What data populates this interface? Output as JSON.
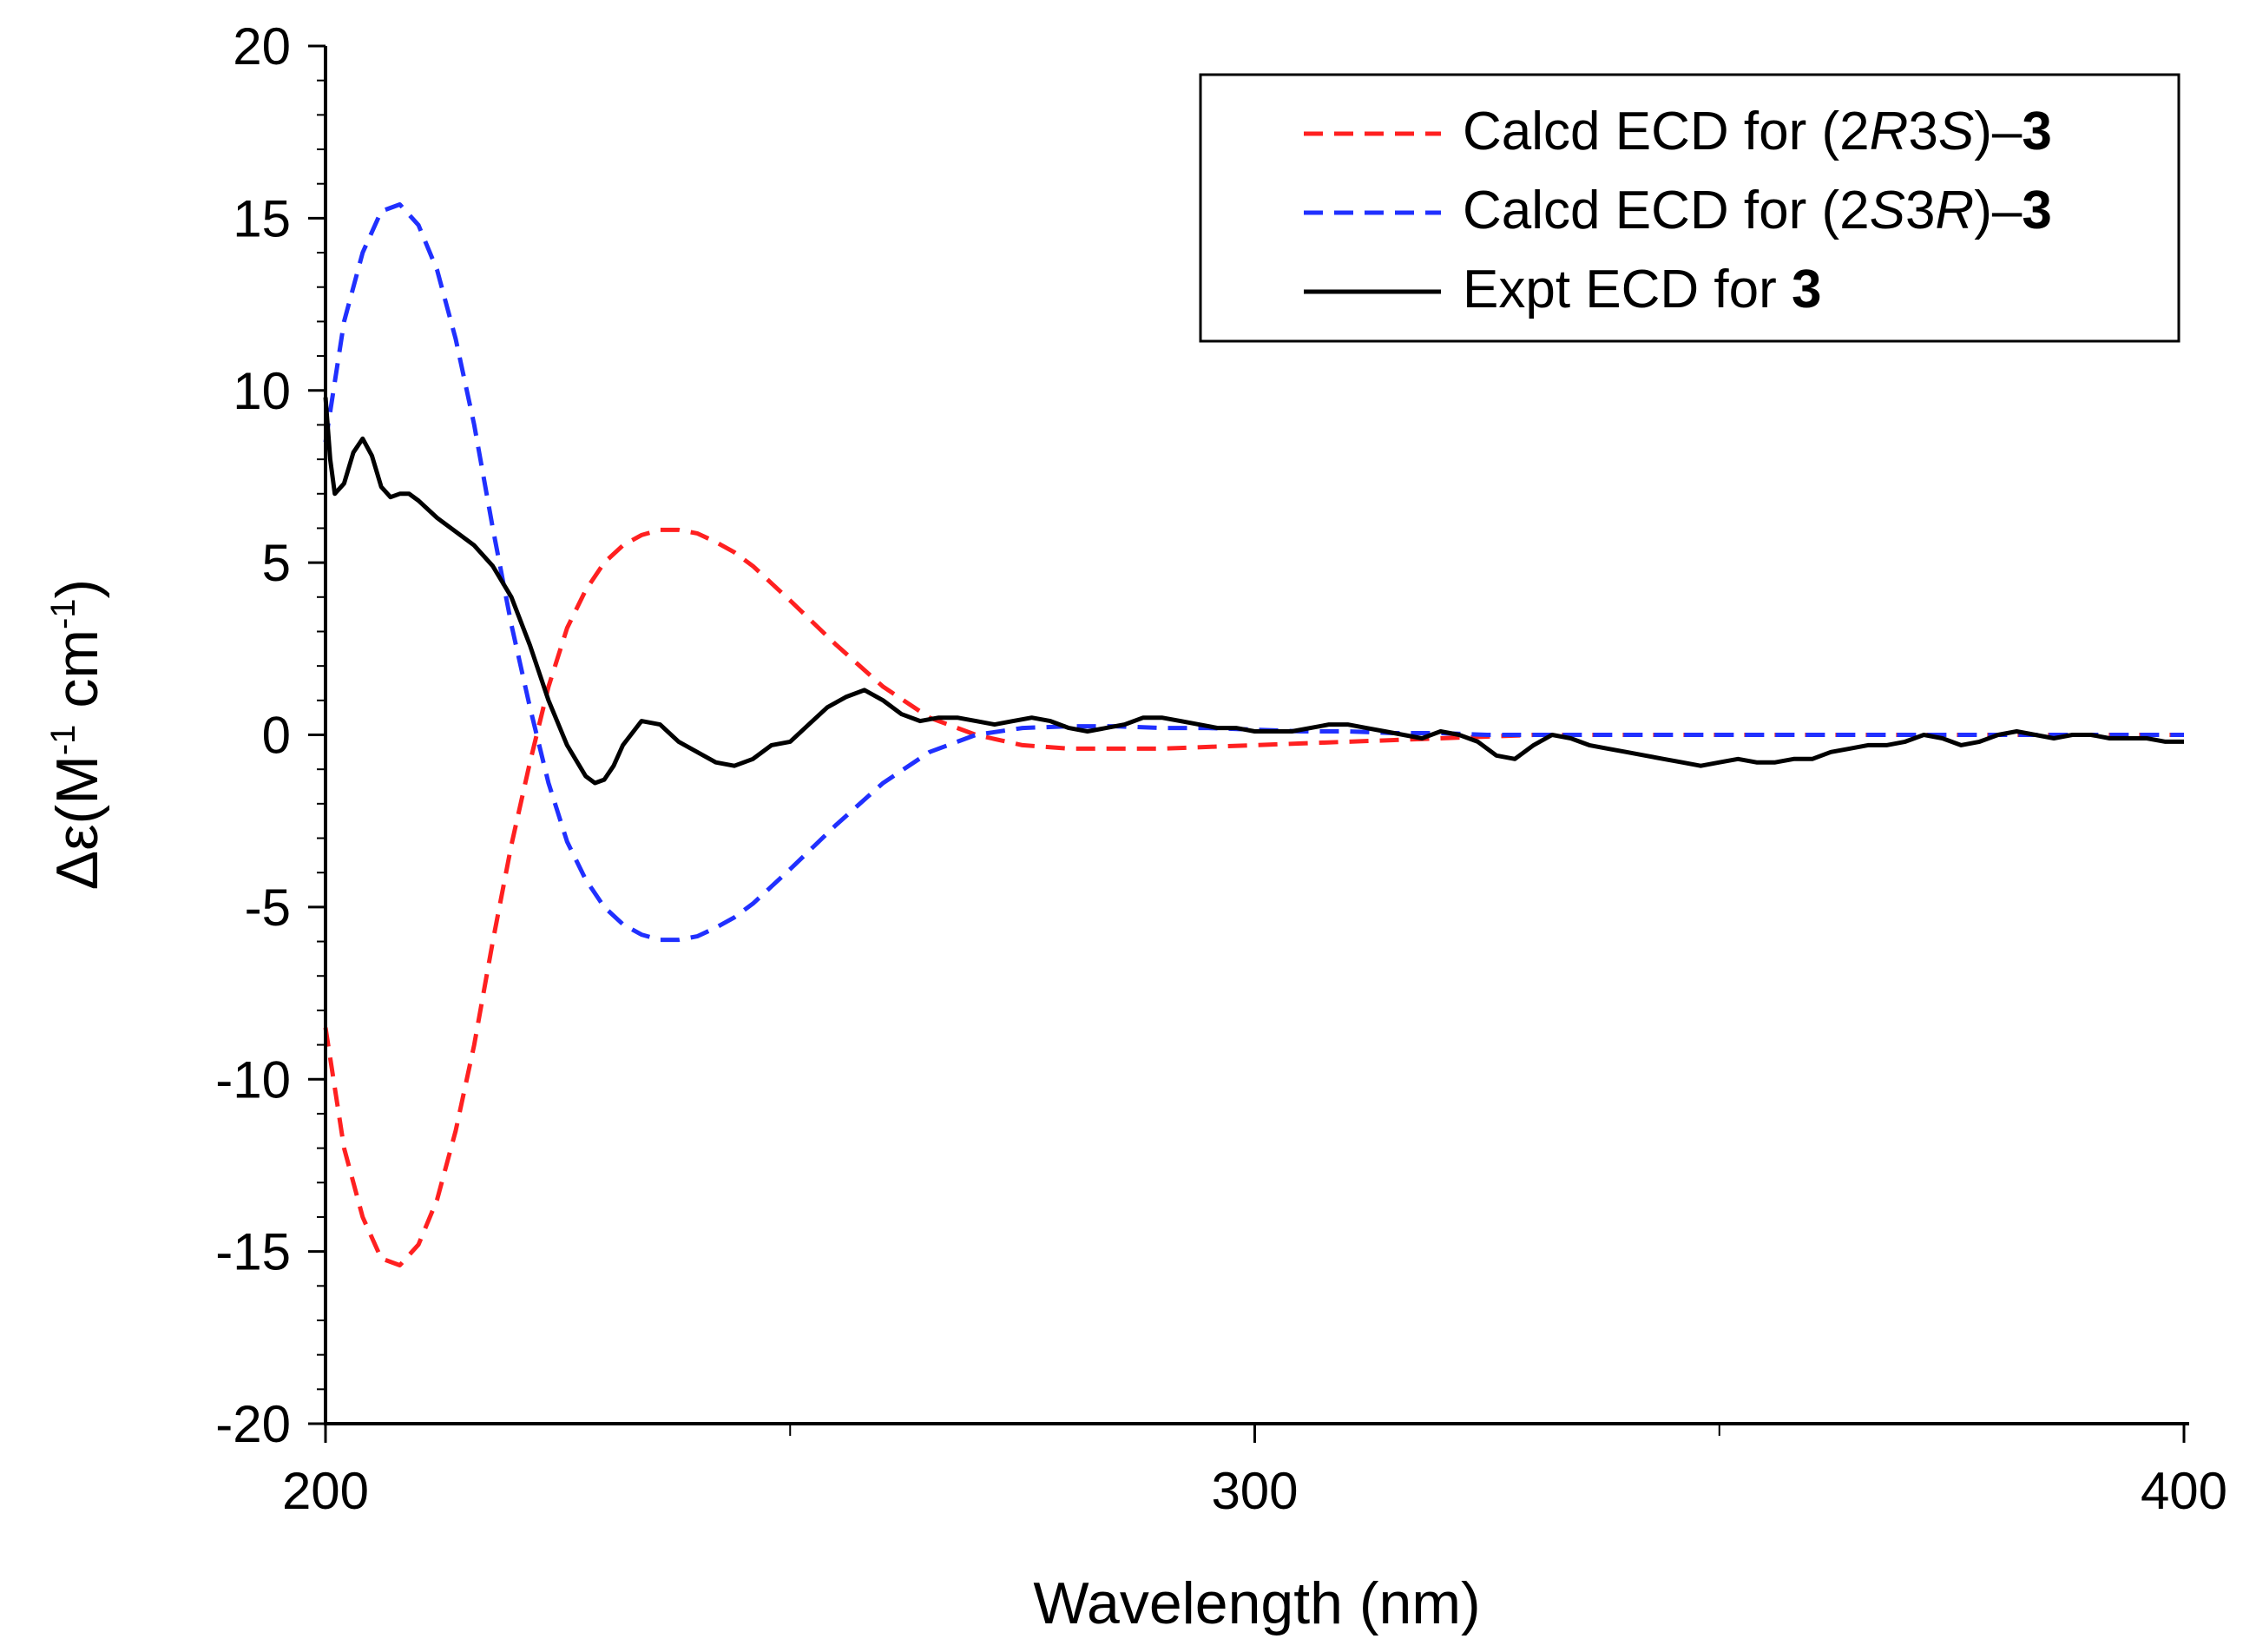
{
  "chart_data": {
    "type": "line",
    "xlabel": "Wavelength (nm)",
    "ylabel": {
      "symbol": "Δε",
      "open": "(M",
      "exp1": "-1",
      "mid": " cm",
      "exp2": "-1",
      "close": ")"
    },
    "xlim": [
      200,
      400
    ],
    "ylim": [
      -20,
      20
    ],
    "x_ticks": [
      200,
      300,
      400
    ],
    "x_tick_labels": [
      "200",
      "300",
      "400"
    ],
    "x_minor_ticks": [
      250,
      350
    ],
    "y_ticks": [
      20,
      15,
      10,
      5,
      0,
      -5,
      -10,
      -15,
      -20
    ],
    "y_tick_labels": [
      "20",
      "15",
      "10",
      "5",
      "0",
      "-5",
      "-10",
      "-15",
      "-20"
    ],
    "y_minor_step": 1,
    "legend_position": "top-right",
    "series": [
      {
        "name": "Calcd ECD for (2R3S)–3",
        "label_parts": [
          {
            "text": "Calcd ECD for (2",
            "style": "normal"
          },
          {
            "text": "R",
            "style": "italic"
          },
          {
            "text": "3",
            "style": "normal"
          },
          {
            "text": "S",
            "style": "italic"
          },
          {
            "text": ")–",
            "style": "normal"
          },
          {
            "text": "3",
            "style": "bold"
          }
        ],
        "color": "#ff2020",
        "dash": "dashed",
        "x": [
          200,
          202,
          204,
          206,
          208,
          210,
          212,
          214,
          216,
          218,
          220,
          222,
          224,
          226,
          228,
          230,
          232,
          234,
          236,
          238,
          240,
          242,
          244,
          246,
          248,
          250,
          255,
          260,
          265,
          270,
          275,
          280,
          285,
          290,
          295,
          300,
          305,
          310,
          315,
          320,
          325,
          330,
          340,
          350,
          360,
          370,
          380,
          390,
          400
        ],
        "values": [
          -8.5,
          -12.0,
          -14.0,
          -15.2,
          -15.4,
          -14.8,
          -13.5,
          -11.5,
          -9.0,
          -6.0,
          -3.2,
          -0.8,
          1.4,
          3.1,
          4.2,
          5.0,
          5.5,
          5.8,
          5.95,
          5.95,
          5.85,
          5.6,
          5.3,
          4.9,
          4.4,
          3.9,
          2.6,
          1.4,
          0.5,
          0.0,
          -0.3,
          -0.4,
          -0.4,
          -0.4,
          -0.35,
          -0.3,
          -0.25,
          -0.2,
          -0.15,
          -0.1,
          -0.05,
          0.0,
          0.0,
          0.0,
          0.0,
          0.0,
          0.0,
          0.0,
          0.0
        ]
      },
      {
        "name": "Calcd ECD for (2S3R)–3",
        "label_parts": [
          {
            "text": "Calcd ECD for (2",
            "style": "normal"
          },
          {
            "text": "S",
            "style": "italic"
          },
          {
            "text": "3",
            "style": "normal"
          },
          {
            "text": "R",
            "style": "italic"
          },
          {
            "text": ")–",
            "style": "normal"
          },
          {
            "text": "3",
            "style": "bold"
          }
        ],
        "color": "#2030ff",
        "dash": "dashed",
        "x": [
          200,
          202,
          204,
          206,
          208,
          210,
          212,
          214,
          216,
          218,
          220,
          222,
          224,
          226,
          228,
          230,
          232,
          234,
          236,
          238,
          240,
          242,
          244,
          246,
          248,
          250,
          255,
          260,
          265,
          270,
          275,
          280,
          285,
          290,
          295,
          300,
          305,
          310,
          315,
          320,
          325,
          330,
          340,
          350,
          360,
          370,
          380,
          390,
          400
        ],
        "values": [
          8.5,
          12.0,
          14.0,
          15.2,
          15.4,
          14.8,
          13.5,
          11.5,
          9.0,
          6.0,
          3.2,
          0.8,
          -1.4,
          -3.1,
          -4.2,
          -5.0,
          -5.5,
          -5.8,
          -5.95,
          -5.95,
          -5.85,
          -5.6,
          -5.3,
          -4.9,
          -4.4,
          -3.9,
          -2.6,
          -1.4,
          -0.5,
          0.0,
          0.2,
          0.25,
          0.25,
          0.2,
          0.2,
          0.15,
          0.1,
          0.1,
          0.05,
          0.05,
          0.0,
          0.0,
          0.0,
          0.0,
          0.0,
          0.0,
          0.0,
          0.0,
          0.0
        ]
      },
      {
        "name": "Expt ECD for 3",
        "label_parts": [
          {
            "text": "Expt ECD for ",
            "style": "normal"
          },
          {
            "text": "3",
            "style": "bold"
          }
        ],
        "color": "#000000",
        "dash": "solid",
        "x": [
          200,
          200.5,
          201,
          202,
          203,
          204,
          205,
          206,
          207,
          208,
          209,
          210,
          212,
          214,
          216,
          218,
          220,
          222,
          224,
          226,
          228,
          229,
          230,
          231,
          232,
          234,
          236,
          238,
          240,
          242,
          244,
          246,
          248,
          250,
          252,
          254,
          256,
          258,
          260,
          262,
          264,
          266,
          268,
          270,
          272,
          274,
          276,
          278,
          280,
          282,
          284,
          286,
          288,
          290,
          292,
          294,
          296,
          298,
          300,
          302,
          304,
          306,
          308,
          310,
          312,
          314,
          316,
          318,
          320,
          322,
          324,
          326,
          328,
          330,
          332,
          334,
          336,
          338,
          340,
          342,
          344,
          346,
          348,
          350,
          352,
          354,
          356,
          358,
          360,
          362,
          364,
          366,
          368,
          370,
          372,
          374,
          376,
          378,
          380,
          382,
          384,
          386,
          388,
          390,
          392,
          394,
          396,
          398,
          400
        ],
        "values": [
          9.8,
          8.0,
          7.0,
          7.3,
          8.2,
          8.6,
          8.1,
          7.2,
          6.9,
          7.0,
          7.0,
          6.8,
          6.3,
          5.9,
          5.5,
          4.9,
          4.0,
          2.6,
          1.0,
          -0.3,
          -1.2,
          -1.4,
          -1.3,
          -0.9,
          -0.3,
          0.4,
          0.3,
          -0.2,
          -0.5,
          -0.8,
          -0.9,
          -0.7,
          -0.3,
          -0.2,
          0.3,
          0.8,
          1.1,
          1.3,
          1.0,
          0.6,
          0.4,
          0.5,
          0.5,
          0.4,
          0.3,
          0.4,
          0.5,
          0.4,
          0.2,
          0.1,
          0.2,
          0.3,
          0.5,
          0.5,
          0.4,
          0.3,
          0.2,
          0.2,
          0.1,
          0.1,
          0.1,
          0.2,
          0.3,
          0.3,
          0.2,
          0.1,
          0.0,
          -0.1,
          0.1,
          0.0,
          -0.2,
          -0.6,
          -0.7,
          -0.3,
          0.0,
          -0.1,
          -0.3,
          -0.4,
          -0.5,
          -0.6,
          -0.7,
          -0.8,
          -0.9,
          -0.8,
          -0.7,
          -0.8,
          -0.8,
          -0.7,
          -0.7,
          -0.5,
          -0.4,
          -0.3,
          -0.3,
          -0.2,
          0.0,
          -0.1,
          -0.3,
          -0.2,
          0.0,
          0.1,
          0.0,
          -0.1,
          0.0,
          0.0,
          -0.1,
          -0.1,
          -0.1,
          -0.2,
          -0.2
        ]
      }
    ]
  }
}
